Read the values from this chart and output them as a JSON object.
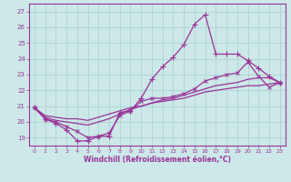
{
  "background_color": "#cce8e8",
  "grid_color": "#b0d0d0",
  "line_color": "#993399",
  "xlabel": "Windchill (Refroidissement éolien,°C)",
  "ylim": [
    18.5,
    27.5
  ],
  "yticks": [
    19,
    20,
    21,
    22,
    23,
    24,
    25,
    26,
    27
  ],
  "xlim": [
    -0.5,
    23.5
  ],
  "xticks": [
    0,
    1,
    2,
    3,
    4,
    5,
    6,
    7,
    8,
    9,
    10,
    11,
    12,
    13,
    14,
    15,
    16,
    17,
    18,
    19,
    20,
    21,
    22,
    23
  ],
  "series_main": [
    20.9,
    20.2,
    19.9,
    19.5,
    18.8,
    18.8,
    19.1,
    19.1,
    20.6,
    20.7,
    21.5,
    22.7,
    23.5,
    24.1,
    24.9,
    26.2,
    26.8,
    24.3,
    24.3,
    24.3,
    23.9,
    23.4,
    22.9,
    22.5
  ],
  "series_2": [
    20.9,
    20.2,
    20.0,
    19.7,
    19.4,
    19.0,
    19.1,
    19.3,
    20.4,
    20.7,
    21.3,
    21.5,
    21.5,
    21.6,
    21.8,
    22.1,
    22.6,
    22.8,
    23.0,
    23.1,
    23.8,
    22.9,
    22.2,
    22.5
  ],
  "series_3": [
    20.9,
    20.3,
    20.1,
    20.0,
    19.9,
    19.8,
    20.0,
    20.2,
    20.5,
    20.8,
    21.0,
    21.2,
    21.4,
    21.5,
    21.7,
    21.9,
    22.1,
    22.3,
    22.4,
    22.5,
    22.7,
    22.8,
    22.8,
    22.5
  ],
  "series_4": [
    20.9,
    20.4,
    20.3,
    20.2,
    20.2,
    20.1,
    20.3,
    20.5,
    20.7,
    20.9,
    21.0,
    21.2,
    21.3,
    21.4,
    21.5,
    21.7,
    21.9,
    22.0,
    22.1,
    22.2,
    22.3,
    22.3,
    22.4,
    22.5
  ]
}
